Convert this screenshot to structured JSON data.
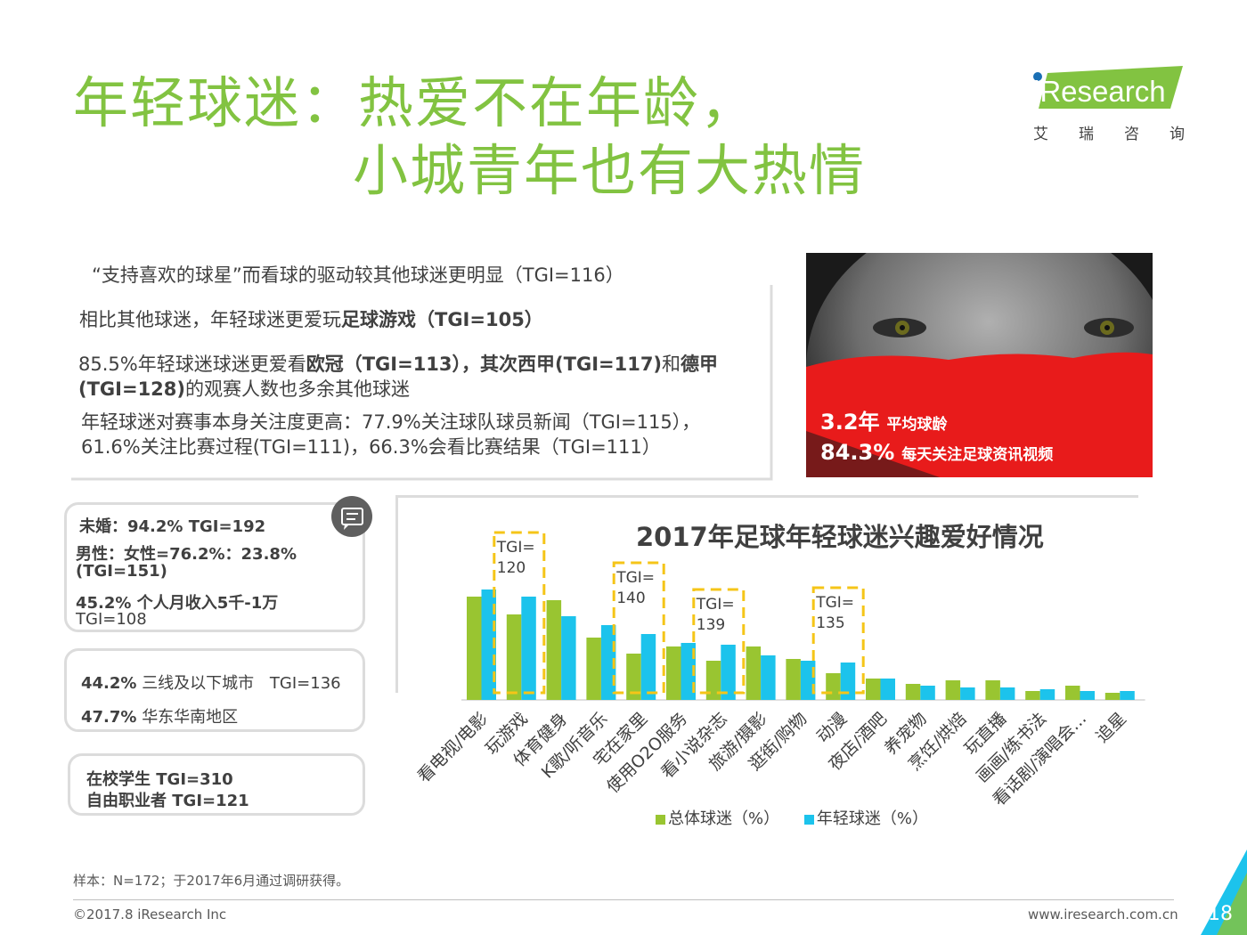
{
  "header": {
    "title_line1": "年轻球迷：热爱不在年龄，",
    "title_line2": "小城青年也有大热情",
    "logo_word": "iResearch",
    "logo_sub": "艾瑞咨询"
  },
  "points": {
    "p1": "“支持喜欢的球星”而看球的驱动较其他球迷更明显（TGI=116）",
    "p2_a": "相比其他球迷，年轻球迷更爱玩",
    "p2_b": "足球游戏（TGI=105）",
    "p3_a": "85.5%年轻球迷球迷更爱看",
    "p3_b": "欧冠（TGI=113），其次",
    "p3_c": "西甲(TGI=117)",
    "p3_d": "和",
    "p3_e": "德甲",
    "p3_f": "(TGI=128)",
    "p3_g": "的观赛人数也多余其他球迷",
    "p4_l1": "年轻球迷对赛事本身关注度更高：77.9%关注球队球员新闻（TGI=115），",
    "p4_l2": "61.6%关注比赛过程(TGI=111)，66.3%会看比赛结果（TGI=111）"
  },
  "photo": {
    "stat1_value": "3.2年",
    "stat1_label": "平均球龄",
    "stat2_value": "84.3%",
    "stat2_label": "每天关注足球资讯视频"
  },
  "profile": {
    "card1": {
      "l1": "未婚：94.2% TGI=192",
      "l2": "男性：女性=76.2%：23.8%",
      "l3": "(TGI=151)",
      "l4": "45.2% 个人月收入5千-1万",
      "l5": "TGI=108"
    },
    "card2": {
      "l1_pct": "44.2%",
      "l1_text": "三线及以下城市",
      "l1_tgi": "TGI=136",
      "l2_pct": "47.7%",
      "l2_text": "华东华南地区"
    },
    "card3": {
      "l1": "在校学生 TGI=310",
      "l2": "自由职业者 TGI=121"
    }
  },
  "chart_data": {
    "type": "bar",
    "title": "2017年足球年轻球迷兴趣爱好情况",
    "categories": [
      "看电视/电影",
      "玩游戏",
      "体育健身",
      "K歌/听音乐",
      "宅在家里",
      "使用O2O服务",
      "看小说杂志",
      "旅游/摄影",
      "逛街/购物",
      "动漫",
      "夜店/酒吧",
      "养宠物",
      "烹饪/烘焙",
      "玩直播",
      "画画/练书法",
      "看话剧/演唱会...",
      "追星"
    ],
    "series": [
      {
        "name": "总体球迷（%）",
        "color": "#99c531",
        "values": [
          58,
          48,
          56,
          35,
          26,
          30,
          22,
          30,
          23,
          15,
          12,
          9,
          11,
          11,
          5,
          8,
          4
        ]
      },
      {
        "name": "年轻球迷（%）",
        "color": "#1cc3ec",
        "values": [
          62,
          58,
          47,
          42,
          37,
          32,
          31,
          25,
          22,
          21,
          12,
          8,
          7,
          7,
          6,
          5,
          5
        ]
      }
    ],
    "annotations": [
      {
        "text_l1": "TGI=",
        "text_l2": "120"
      },
      {
        "text_l1": "TGI=",
        "text_l2": "140"
      },
      {
        "text_l1": "TGI=",
        "text_l2": "139"
      },
      {
        "text_l1": "TGI=",
        "text_l2": "135"
      }
    ],
    "ylim": [
      0,
      70
    ],
    "grid": false,
    "legend": "bottom"
  },
  "footer": {
    "note": "样本：N=172；于2017年6月通过调研获得。",
    "copyright": "©2017.8 iResearch Inc",
    "website": "www.iresearch.com.cn",
    "page": "18"
  }
}
